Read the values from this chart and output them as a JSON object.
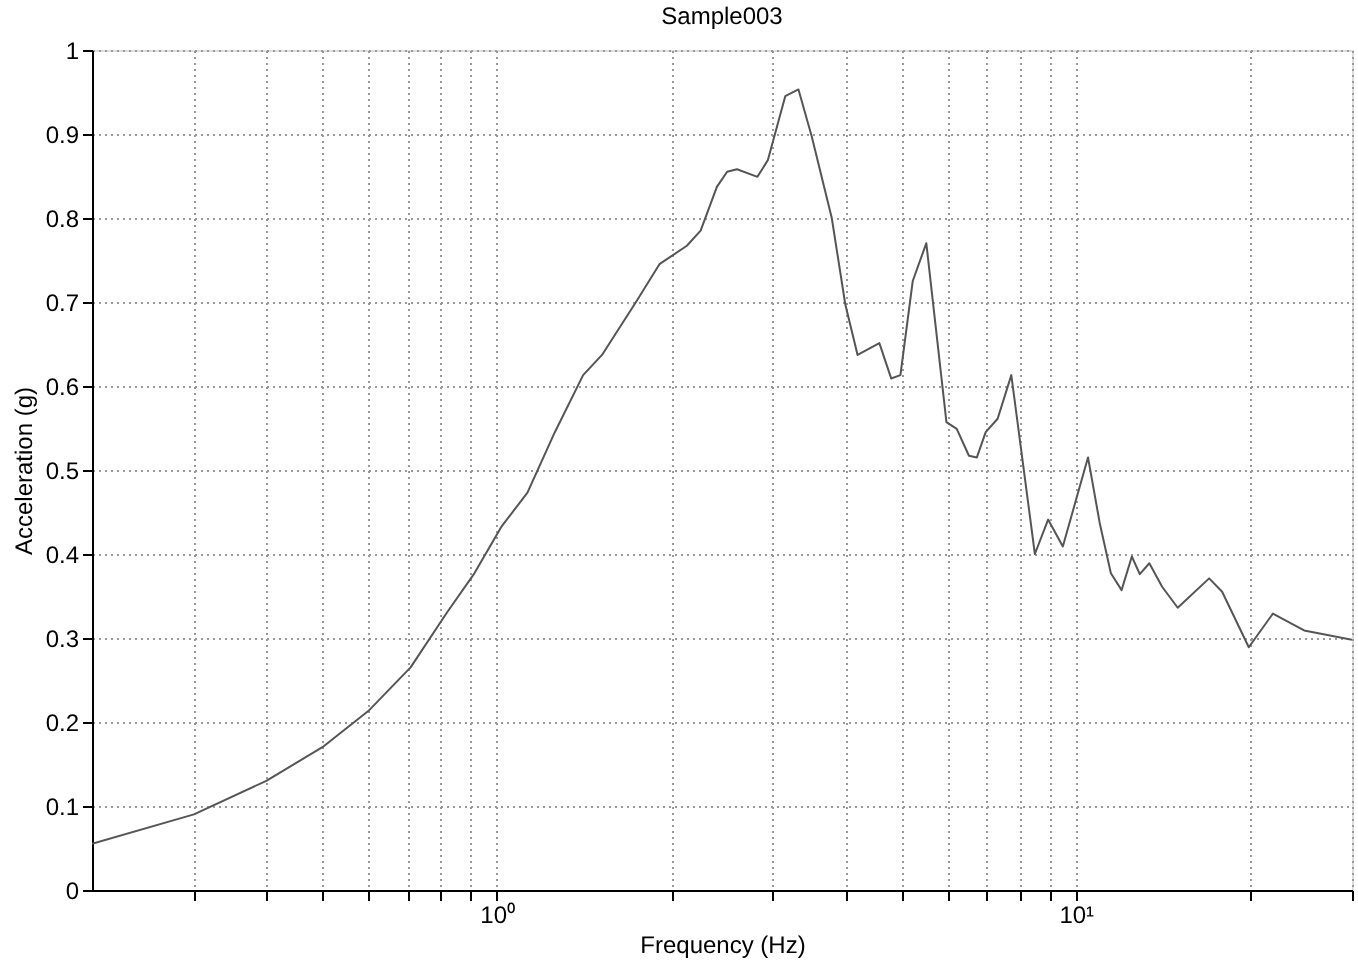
{
  "chart_data": {
    "type": "line",
    "title": "Sample003",
    "xlabel": "Frequency (Hz)",
    "ylabel": "Acceleration (g)",
    "log": "x",
    "grid": true,
    "marker": "none",
    "line_style": "solid",
    "xlim": [
      0.2,
      30
    ],
    "ylim": [
      0,
      1
    ],
    "xticks": [
      {
        "value": 0.3,
        "label": null
      },
      {
        "value": 0.4,
        "label": null
      },
      {
        "value": 0.5,
        "label": null
      },
      {
        "value": 0.6,
        "label": null
      },
      {
        "value": 0.7,
        "label": null
      },
      {
        "value": 0.8,
        "label": null
      },
      {
        "value": 0.9,
        "label": null
      },
      {
        "value": 1,
        "label": "10⁰"
      },
      {
        "value": 2,
        "label": null
      },
      {
        "value": 3,
        "label": null
      },
      {
        "value": 4,
        "label": null
      },
      {
        "value": 5,
        "label": null
      },
      {
        "value": 6,
        "label": null
      },
      {
        "value": 7,
        "label": null
      },
      {
        "value": 8,
        "label": null
      },
      {
        "value": 9,
        "label": null
      },
      {
        "value": 10,
        "label": "10¹"
      },
      {
        "value": 20,
        "label": null
      },
      {
        "value": 30,
        "label": null
      }
    ],
    "yticks": [
      0,
      0.1,
      0.2,
      0.3,
      0.4,
      0.5,
      0.6,
      0.7,
      0.8,
      0.9,
      1
    ],
    "x": [
      0.2,
      0.3,
      0.4,
      0.5,
      0.6,
      0.71,
      0.82,
      0.915,
      1.02,
      1.13,
      1.26,
      1.41,
      1.52,
      1.74,
      1.91,
      2.13,
      2.25,
      2.4,
      2.5,
      2.6,
      2.82,
      2.94,
      3.15,
      3.32,
      3.5,
      3.79,
      4.0,
      4.2,
      4.58,
      4.8,
      4.98,
      5.23,
      5.52,
      5.98,
      6.23,
      6.54,
      6.75,
      6.99,
      7.33,
      7.74,
      8.5,
      8.96,
      9.5,
      10.5,
      11.0,
      11.5,
      12.0,
      12.5,
      12.9,
      13.4,
      14.1,
      15.0,
      17.0,
      17.9,
      19.9,
      21.9,
      24.8,
      30
    ],
    "series": [
      {
        "color": "#555555",
        "values": [
          0.055,
          0.09,
          0.13,
          0.17,
          0.213,
          0.265,
          0.33,
          0.377,
          0.433,
          0.473,
          0.545,
          0.613,
          0.637,
          0.7,
          0.745,
          0.767,
          0.785,
          0.837,
          0.855,
          0.858,
          0.849,
          0.869,
          0.945,
          0.953,
          0.897,
          0.8,
          0.697,
          0.637,
          0.651,
          0.609,
          0.613,
          0.725,
          0.77,
          0.557,
          0.549,
          0.517,
          0.515,
          0.545,
          0.561,
          0.613,
          0.4,
          0.441,
          0.409,
          0.515,
          0.437,
          0.377,
          0.357,
          0.397,
          0.376,
          0.389,
          0.361,
          0.336,
          0.371,
          0.355,
          0.289,
          0.329,
          0.309,
          0.298
        ]
      }
    ]
  }
}
